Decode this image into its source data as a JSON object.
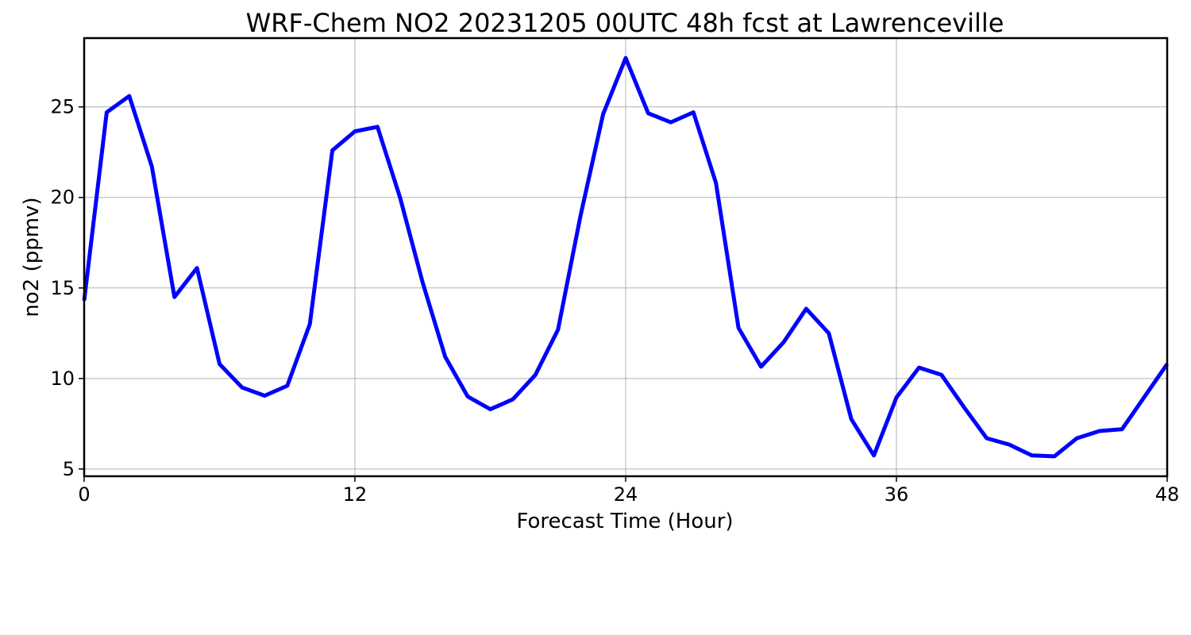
{
  "chart_data": {
    "type": "line",
    "title": "WRF-Chem NO2  20231205 00UTC 48h fcst at Lawrenceville",
    "xlabel": "Forecast Time (Hour)",
    "ylabel": "no2  (ppmv)",
    "xlim": [
      0,
      48
    ],
    "ylim": [
      4.6,
      28.8
    ],
    "xticks": [
      0,
      12,
      24,
      36,
      48
    ],
    "xtick_labels": [
      "0",
      "12",
      "24",
      "36",
      "48"
    ],
    "yticks": [
      5,
      10,
      15,
      20,
      25
    ],
    "ytick_labels": [
      "5",
      "10",
      "15",
      "20",
      "25"
    ],
    "grid": true,
    "line_color": "#0000ff",
    "series": [
      {
        "x": [
          0,
          1,
          2,
          3,
          4,
          5,
          6,
          7,
          8,
          9,
          10,
          11,
          12,
          13,
          14,
          15,
          16,
          17,
          18,
          19,
          20,
          21,
          22,
          23,
          24,
          25,
          26,
          27,
          28,
          29,
          30,
          31,
          32,
          33,
          34,
          35,
          36,
          37,
          38,
          39,
          40,
          41,
          42,
          43,
          44,
          45,
          46,
          47,
          48
        ],
        "values": [
          14.3,
          24.7,
          25.6,
          21.7,
          14.5,
          16.1,
          10.8,
          9.5,
          9.05,
          9.6,
          13.0,
          22.6,
          23.65,
          23.9,
          20.0,
          15.3,
          11.2,
          9.0,
          8.3,
          8.85,
          10.2,
          12.7,
          19.0,
          24.6,
          27.7,
          24.65,
          24.15,
          24.7,
          20.8,
          12.8,
          10.65,
          12.0,
          13.85,
          12.5,
          7.75,
          5.75,
          8.95,
          10.6,
          10.2,
          8.4,
          6.7,
          6.35,
          5.75,
          5.7,
          6.7,
          7.1,
          7.2,
          9.0,
          10.8
        ]
      }
    ]
  }
}
